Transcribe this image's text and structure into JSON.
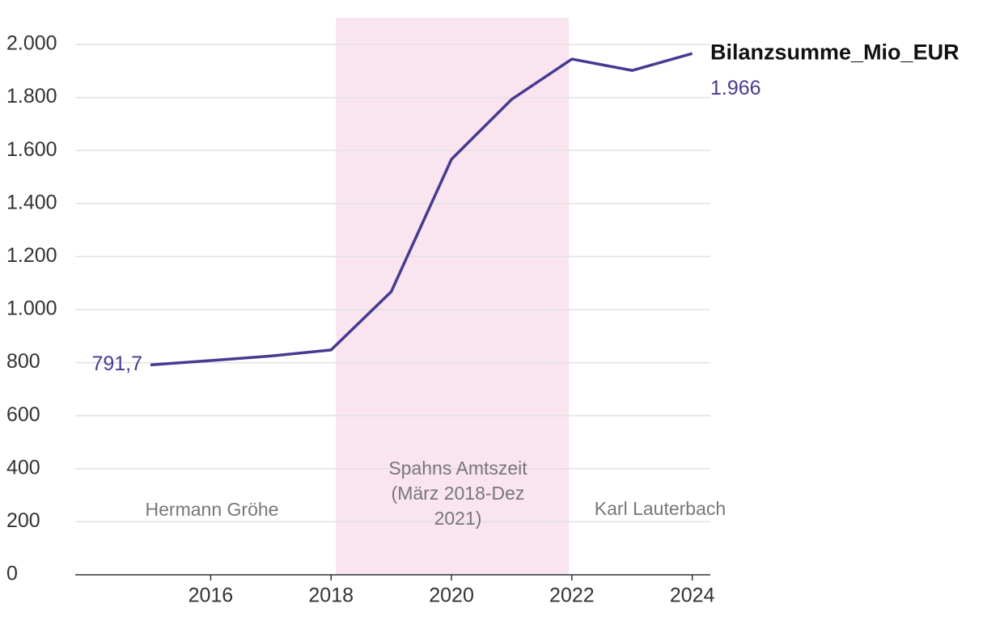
{
  "chart_data": {
    "type": "line",
    "x": [
      2015,
      2016,
      2017,
      2018,
      2019,
      2020,
      2021,
      2022,
      2023,
      2024
    ],
    "series": [
      {
        "name": "Bilanzsumme_Mio_EUR",
        "color": "#463a91",
        "values": [
          791.7,
          808,
          825,
          848,
          1068,
          1567,
          1793,
          1945,
          1902,
          1966
        ],
        "value_labels": [
          "791,7",
          null,
          null,
          null,
          null,
          null,
          null,
          null,
          null,
          "1.966"
        ]
      }
    ],
    "xlim": [
      2013.75,
      2024.3
    ],
    "xticks": [
      2016,
      2018,
      2020,
      2022,
      2024
    ],
    "ylim": [
      0,
      2000
    ],
    "yticks": [
      0,
      200,
      400,
      600,
      800,
      {
        "value": 1000,
        "label": "1.000"
      },
      {
        "value": 1200,
        "label": "1.200"
      },
      {
        "value": 1400,
        "label": "1.400"
      },
      {
        "value": 1600,
        "label": "1.600"
      },
      {
        "value": 1800,
        "label": "1.800"
      },
      {
        "value": 2000,
        "label": "2.000"
      }
    ],
    "grid": true,
    "highlight": {
      "start": 2018.08,
      "end": 2021.95,
      "color": "#f9e4ef"
    },
    "annotations": [
      {
        "lines": [
          "Hermann Gröhe"
        ]
      },
      {
        "lines": [
          "Spahns Amtszeit",
          "(März 2018-Dez",
          "2021)"
        ]
      },
      {
        "lines": [
          "Karl Lauterbach"
        ]
      }
    ]
  }
}
